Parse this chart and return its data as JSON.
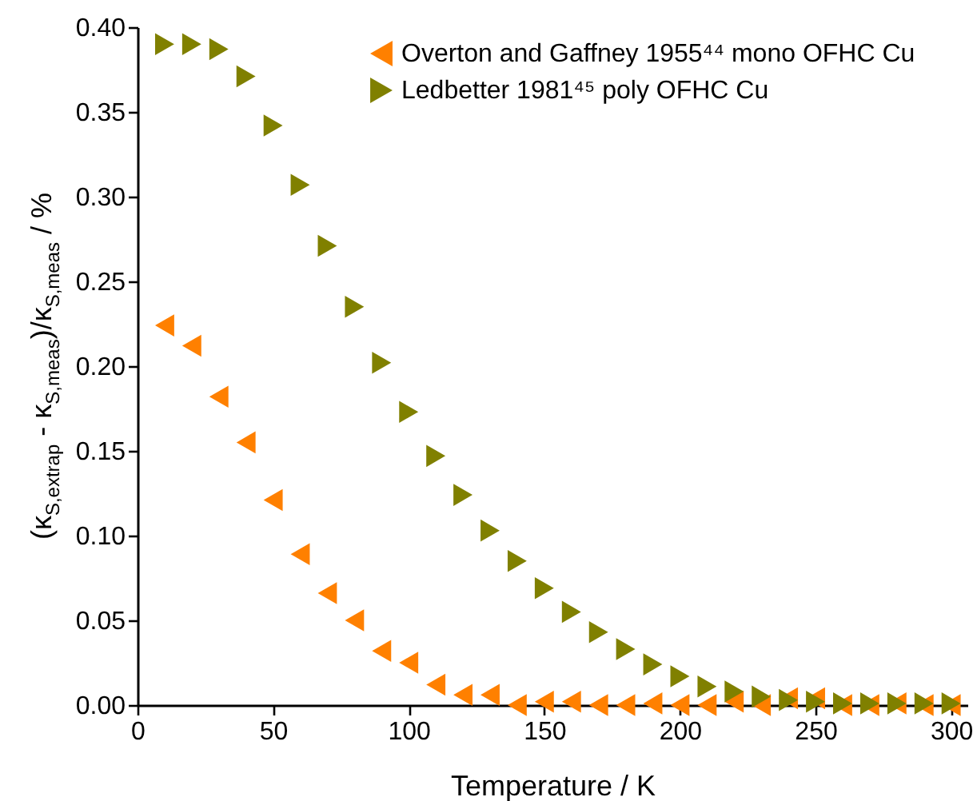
{
  "chart_data": {
    "type": "scatter",
    "xlabel": "Temperature / K",
    "ylabel": "(κ$_{S,extrap}$ - κ$_{S,meas}$)/κ$_{S,meas}$ / %",
    "x": [
      10,
      20,
      30,
      40,
      50,
      60,
      70,
      80,
      90,
      100,
      110,
      120,
      130,
      140,
      150,
      160,
      170,
      180,
      190,
      200,
      210,
      220,
      230,
      240,
      250,
      260,
      270,
      280,
      290,
      300
    ],
    "series": [
      {
        "name": "Overton and Gaffney 1955⁴⁴ mono OFHC Cu",
        "color": "#ff8000",
        "marker": "triangle-left",
        "values": [
          0.224,
          0.212,
          0.182,
          0.155,
          0.121,
          0.089,
          0.066,
          0.05,
          0.032,
          0.025,
          0.012,
          0.006,
          0.006,
          0.0,
          0.002,
          0.002,
          0.0,
          0.0,
          0.001,
          0.0,
          0.0,
          0.002,
          0.0,
          0.004,
          0.004,
          0.0,
          0.0,
          0.001,
          0.0,
          0.0
        ]
      },
      {
        "name": "Ledbetter 1981⁴⁵ poly OFHC Cu",
        "color": "#808000",
        "marker": "triangle-right",
        "values": [
          0.39,
          0.39,
          0.387,
          0.371,
          0.342,
          0.307,
          0.271,
          0.235,
          0.202,
          0.173,
          0.147,
          0.124,
          0.103,
          0.085,
          0.069,
          0.055,
          0.043,
          0.033,
          0.024,
          0.017,
          0.011,
          0.008,
          0.005,
          0.003,
          0.002,
          0.001,
          0.001,
          0.001,
          0.001,
          0.001
        ]
      }
    ],
    "xlim": [
      0,
      306
    ],
    "xticks": [
      0,
      50,
      100,
      150,
      200,
      250,
      300
    ],
    "ylim": [
      0,
      0.4
    ],
    "yticks": [
      {
        "value": 0,
        "label": "0.00"
      },
      {
        "value": 0.05,
        "label": "0.05"
      },
      {
        "value": 0.1,
        "label": "0.10"
      },
      {
        "value": 0.15,
        "label": "0.15"
      },
      {
        "value": 0.2,
        "label": "0.20"
      },
      {
        "value": 0.25,
        "label": "0.25"
      },
      {
        "value": 0.3,
        "label": "0.30"
      },
      {
        "value": 0.35,
        "label": "0.35"
      },
      {
        "value": 0.4,
        "label": "0.40"
      }
    ],
    "grid": false,
    "legend": "top right"
  }
}
